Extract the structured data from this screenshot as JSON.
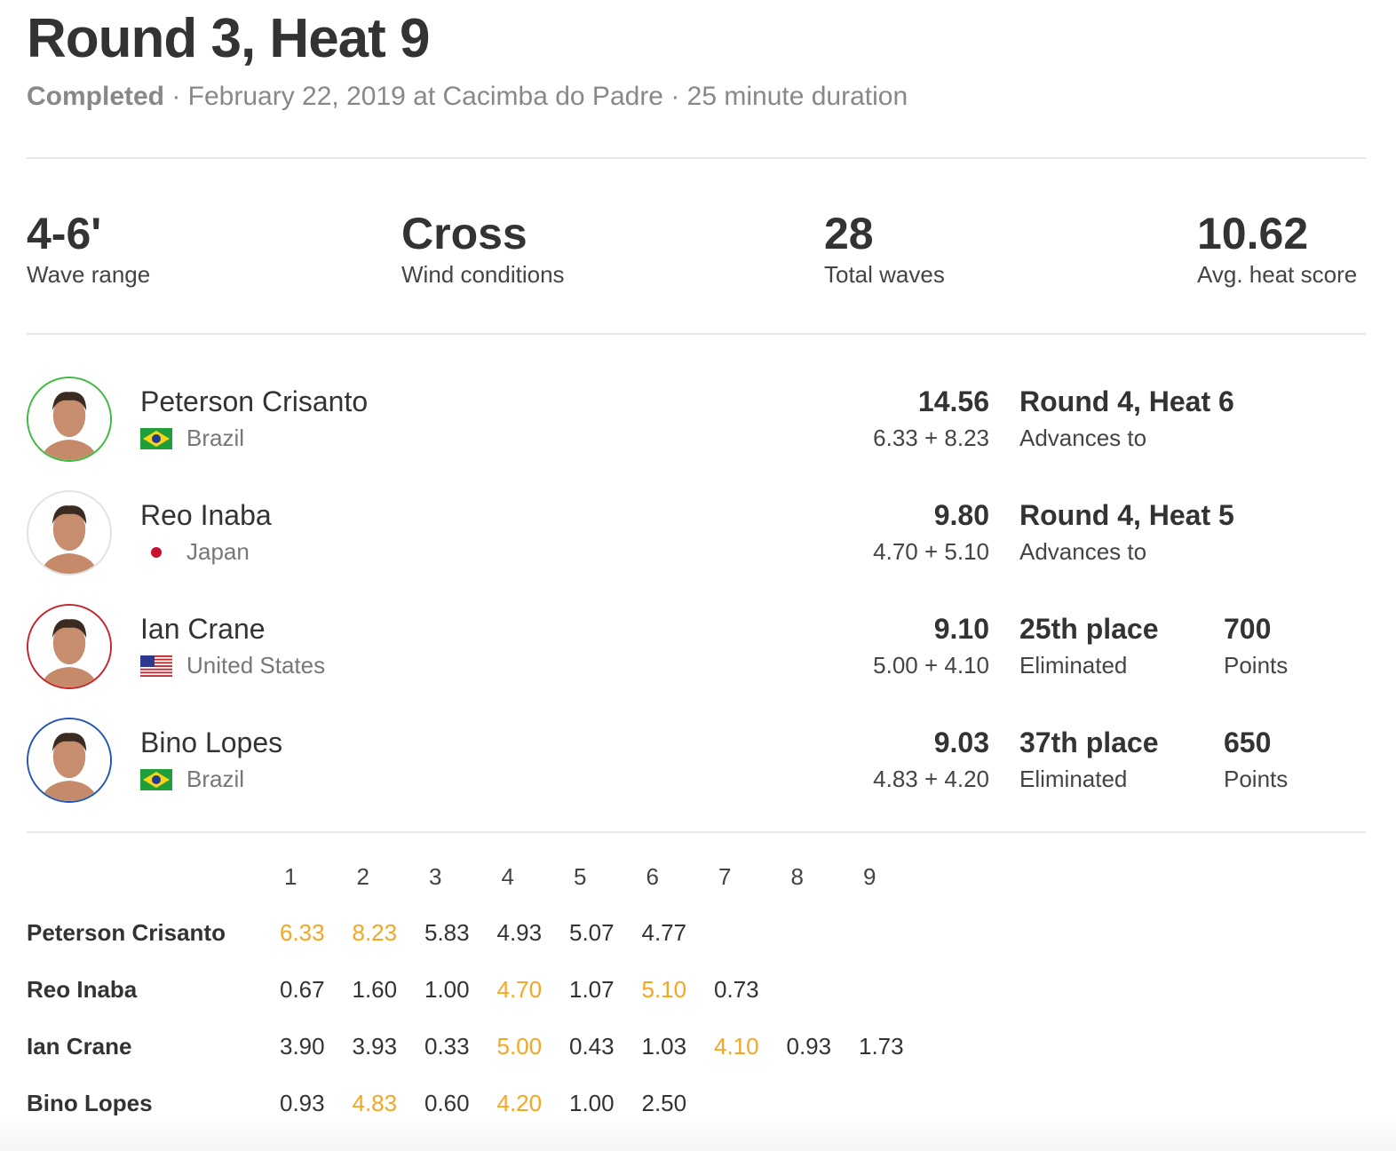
{
  "header": {
    "title": "Round 3, Heat 9",
    "status": "Completed",
    "details": " · February 22, 2019 at Cacimba do Padre · 25 minute duration"
  },
  "stats": [
    {
      "value": "4-6'",
      "label": "Wave range"
    },
    {
      "value": "Cross",
      "label": "Wind conditions"
    },
    {
      "value": "28",
      "label": "Total waves"
    },
    {
      "value": "10.62",
      "label": "Avg. heat score"
    }
  ],
  "athletes": [
    {
      "name": "Peterson Crisanto",
      "country": "Brazil",
      "flag": "brazil-flag",
      "ring": "#3dba3d",
      "score": "14.56",
      "waves": "6.33 + 8.23",
      "result": "Round 4, Heat 6",
      "result_label": "Advances to"
    },
    {
      "name": "Reo Inaba",
      "country": "Japan",
      "flag": "japan-flag",
      "ring": "#e2e2e2",
      "score": "9.80",
      "waves": "4.70 + 5.10",
      "result": "Round 4, Heat 5",
      "result_label": "Advances to"
    },
    {
      "name": "Ian Crane",
      "country": "United States",
      "flag": "usa-flag",
      "ring": "#c8242b",
      "score": "9.10",
      "waves": "5.00 + 4.10",
      "result": "25th place",
      "result_label": "Eliminated",
      "points": "700",
      "points_label": "Points"
    },
    {
      "name": "Bino Lopes",
      "country": "Brazil",
      "flag": "brazil-flag",
      "ring": "#2357b5",
      "score": "9.03",
      "waves": "4.83 + 4.20",
      "result": "37th place",
      "result_label": "Eliminated",
      "points": "650",
      "points_label": "Points"
    }
  ],
  "wave_table": {
    "headers": [
      "1",
      "2",
      "3",
      "4",
      "5",
      "6",
      "7",
      "8",
      "9"
    ],
    "highlight_color": "#f5a623",
    "rows": [
      {
        "name": "Peterson Crisanto",
        "scores": [
          "6.33",
          "8.23",
          "5.83",
          "4.93",
          "5.07",
          "4.77"
        ],
        "best": [
          0,
          1
        ]
      },
      {
        "name": "Reo Inaba",
        "scores": [
          "0.67",
          "1.60",
          "1.00",
          "4.70",
          "1.07",
          "5.10",
          "0.73"
        ],
        "best": [
          3,
          5
        ]
      },
      {
        "name": "Ian Crane",
        "scores": [
          "3.90",
          "3.93",
          "0.33",
          "5.00",
          "0.43",
          "1.03",
          "4.10",
          "0.93",
          "1.73"
        ],
        "best": [
          3,
          6
        ]
      },
      {
        "name": "Bino Lopes",
        "scores": [
          "0.93",
          "4.83",
          "0.60",
          "4.20",
          "1.00",
          "2.50"
        ],
        "best": [
          1,
          3
        ]
      }
    ]
  }
}
